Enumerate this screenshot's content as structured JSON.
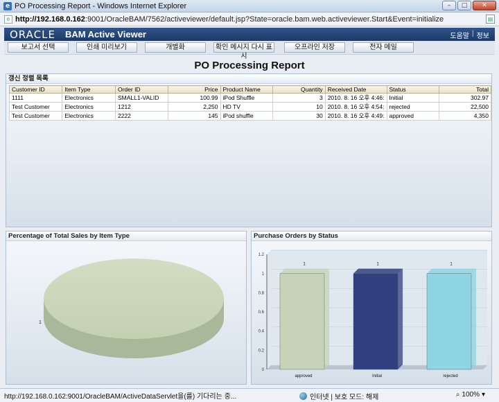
{
  "window": {
    "title": "PO Processing Report - Windows Internet Explorer",
    "url_host": "http://192.168.0.162",
    "url_rest": ":9001/OracleBAM/7562/activeviewer/default.jsp?State=oracle.bam.web.activeviewer.Start&Event=initialize"
  },
  "header": {
    "logo": "ORACLE",
    "app_name": "BAM Active Viewer",
    "help": "도움말",
    "separator": "|",
    "info": "정보"
  },
  "toolbar": {
    "buttons": [
      "보고서 선택",
      "인쇄 미리보기",
      "개별화",
      "확인 메시지 다시 표시",
      "오프라인 저장",
      "전자 메일"
    ]
  },
  "report": {
    "title": "PO Processing Report"
  },
  "list_panel": {
    "title": "갱신 정렬 목록",
    "columns": [
      "Customer ID",
      "Item Type",
      "Order ID",
      "Price",
      "Product Name",
      "Quantity",
      "Received Date",
      "Status",
      "Total"
    ],
    "rows": [
      [
        "1111",
        "Electronics",
        "SMALL1-VALID",
        "100.99",
        "iPod Shuffle",
        "3",
        "2010. 8. 16 오후 4:46:",
        "Initial",
        "302.97"
      ],
      [
        "Test Customer",
        "Electronics",
        "1212",
        "2,250",
        "HD TV",
        "10",
        "2010. 8. 16 오후 4:54:",
        "rejected",
        "22,500"
      ],
      [
        "Test Customer",
        "Electronics",
        "2222",
        "145",
        "iPod shuffle",
        "30",
        "2010. 8. 16 오후 4:49:",
        "approved",
        "4,350"
      ]
    ]
  },
  "pie_panel": {
    "title": "Percentage of Total Sales by Item Type"
  },
  "bar_panel": {
    "title": "Purchase Orders by Status"
  },
  "chart_data": [
    {
      "type": "pie",
      "title": "Percentage of Total Sales by Item Type",
      "slices": [
        {
          "label": "1",
          "value": 1
        }
      ],
      "color": "#c3d1b1"
    },
    {
      "type": "bar",
      "title": "Purchase Orders by Status",
      "categories": [
        "approved",
        "Initial",
        "rejected"
      ],
      "values": [
        1,
        1,
        1
      ],
      "colors": [
        "#c7d3b8",
        "#2f3f80",
        "#8ed4e2"
      ],
      "ylim": [
        0,
        1.2
      ],
      "yticks": [
        "0",
        "0.2",
        "0.4",
        "0.6",
        "0.8",
        "1",
        "1.2"
      ],
      "data_labels": [
        "1",
        "1",
        "1"
      ]
    }
  ],
  "statusbar": {
    "text": "http://192.168.0.162:9001/OracleBAM/ActiveDataServlet을(를) 기다리는 중...",
    "zone": "인터넷 | 보호 모드: 해제",
    "zoom": "100%"
  }
}
